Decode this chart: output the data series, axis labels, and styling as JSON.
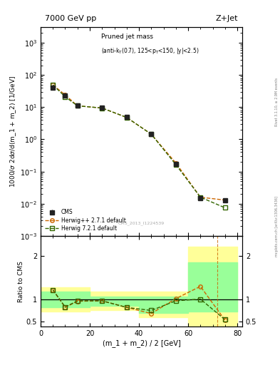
{
  "title_left": "7000 GeV pp",
  "title_right": "Z+Jet",
  "annotation": "Pruned jet mass$_{\\mathregular{(anti-k_T(0.7), 125<p_T<150, |y|<2.5)}}$",
  "annotation_plain": "Pruned jet mass",
  "annotation_sub": "(anti-k_{T}(0.7), 125<p_{T}<150, |y|<2.5)",
  "watermark": "CMS_2013_I1224539",
  "ylabel_main": "1000/$\\sigma$ 2d$\\sigma$/d(m_1 + m_2) [1/GeV]",
  "ylabel_ratio": "Ratio to CMS",
  "xlabel": "(m_1 + m_2) / 2 [GeV]",
  "right_label": "mcplots.cern.ch [arXiv:1306.3436]",
  "right_label2": "Rivet 3.1.10, ≥ 2.9M events",
  "cms_x": [
    5,
    10,
    15,
    25,
    35,
    45,
    55,
    65,
    75
  ],
  "cms_y": [
    40.0,
    23.0,
    11.5,
    9.5,
    5.0,
    1.5,
    0.17,
    0.015,
    0.013
  ],
  "cms_yerr_lo": [
    3.0,
    1.5,
    0.8,
    0.6,
    0.3,
    0.1,
    0.015,
    0.002,
    0.002
  ],
  "cms_yerr_hi": [
    3.0,
    1.5,
    0.8,
    0.6,
    0.3,
    0.1,
    0.015,
    0.002,
    0.002
  ],
  "hw271_x": [
    5,
    10,
    15,
    25,
    35,
    45,
    55,
    65,
    75
  ],
  "hw271_y": [
    49.0,
    24.0,
    11.0,
    9.4,
    4.8,
    1.45,
    0.185,
    0.016,
    0.013
  ],
  "hw721_x": [
    5,
    10,
    15,
    25,
    35,
    45,
    55,
    65,
    75
  ],
  "hw721_y": [
    49.0,
    21.0,
    11.0,
    9.4,
    4.8,
    1.45,
    0.165,
    0.016,
    0.0075
  ],
  "ratio_hw271": [
    1.22,
    0.82,
    0.96,
    0.97,
    0.82,
    0.68,
    1.02,
    1.3,
    0.53
  ],
  "ratio_hw721": [
    1.22,
    0.83,
    0.97,
    0.97,
    0.82,
    0.75,
    0.97,
    1.01,
    0.54
  ],
  "ratio_x": [
    5,
    10,
    15,
    25,
    35,
    45,
    55,
    65,
    75
  ],
  "band_edges": [
    0,
    10,
    20,
    30,
    40,
    50,
    60,
    70,
    80
  ],
  "yellow_hi": [
    1.28,
    1.28,
    1.18,
    1.18,
    1.18,
    1.18,
    2.2,
    2.2,
    2.2
  ],
  "yellow_lo": [
    0.72,
    0.72,
    0.75,
    0.75,
    0.6,
    0.6,
    0.38,
    0.38,
    0.38
  ],
  "green_hi": [
    1.18,
    1.18,
    1.07,
    1.07,
    1.07,
    1.07,
    1.85,
    1.85,
    1.85
  ],
  "green_lo": [
    0.82,
    0.82,
    0.85,
    0.85,
    0.7,
    0.7,
    0.72,
    0.72,
    0.72
  ],
  "cms_color": "#222222",
  "hw271_color": "#cc6600",
  "hw721_color": "#336600",
  "yellow_color": "#ffff99",
  "green_color": "#99ff99",
  "ylim_main": [
    0.001,
    3000
  ],
  "ylim_ratio": [
    0.38,
    2.45
  ],
  "xlim": [
    0,
    82
  ]
}
